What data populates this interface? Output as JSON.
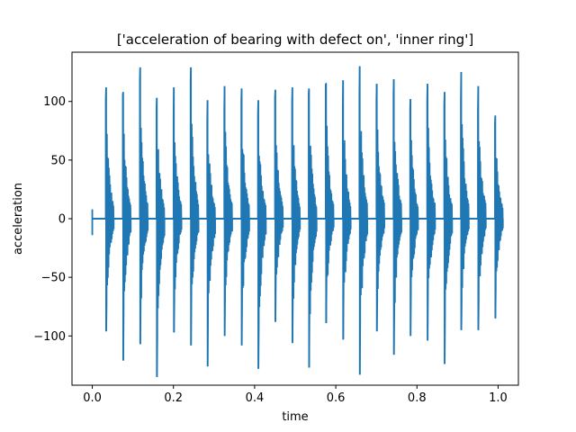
{
  "chart_data": {
    "type": "line",
    "title": "['acceleration of bearing with defect on', 'inner ring']",
    "xlabel": "time",
    "ylabel": "acceleration",
    "xlim": [
      -0.05,
      1.05
    ],
    "ylim": [
      -142,
      142
    ],
    "xticks": [
      0.0,
      0.2,
      0.4,
      0.6,
      0.8,
      1.0
    ],
    "xtick_labels": [
      "0.0",
      "0.2",
      "0.4",
      "0.6",
      "0.8",
      "1.0"
    ],
    "yticks": [
      -100,
      -50,
      0,
      50,
      100
    ],
    "ytick_labels": [
      "−100",
      "−50",
      "0",
      "50",
      "100"
    ],
    "grid": false,
    "series": [
      {
        "name": "acceleration",
        "color": "#1f77b4",
        "baseline": 0,
        "initial_spike": {
          "t": 0.0,
          "max": 8,
          "min": -14
        },
        "bursts": [
          {
            "t": 0.033,
            "max": 112,
            "min": -96
          },
          {
            "t": 0.075,
            "max": 108,
            "min": -121
          },
          {
            "t": 0.117,
            "max": 129,
            "min": -107
          },
          {
            "t": 0.158,
            "max": 103,
            "min": -135
          },
          {
            "t": 0.2,
            "max": 112,
            "min": -97
          },
          {
            "t": 0.242,
            "max": 129,
            "min": -108
          },
          {
            "t": 0.283,
            "max": 101,
            "min": -126
          },
          {
            "t": 0.325,
            "max": 113,
            "min": -100
          },
          {
            "t": 0.367,
            "max": 111,
            "min": -108
          },
          {
            "t": 0.408,
            "max": 101,
            "min": -128
          },
          {
            "t": 0.45,
            "max": 110,
            "min": -88
          },
          {
            "t": 0.492,
            "max": 112,
            "min": -106
          },
          {
            "t": 0.533,
            "max": 111,
            "min": -127
          },
          {
            "t": 0.575,
            "max": 115,
            "min": -89
          },
          {
            "t": 0.617,
            "max": 118,
            "min": -103
          },
          {
            "t": 0.658,
            "max": 130,
            "min": -133
          },
          {
            "t": 0.7,
            "max": 115,
            "min": -96
          },
          {
            "t": 0.742,
            "max": 119,
            "min": -116
          },
          {
            "t": 0.783,
            "max": 102,
            "min": -100
          },
          {
            "t": 0.825,
            "max": 115,
            "min": -104
          },
          {
            "t": 0.867,
            "max": 108,
            "min": -124
          },
          {
            "t": 0.908,
            "max": 125,
            "min": -95
          },
          {
            "t": 0.95,
            "max": 113,
            "min": -95
          },
          {
            "t": 0.992,
            "max": 88,
            "min": -85
          }
        ]
      }
    ]
  }
}
